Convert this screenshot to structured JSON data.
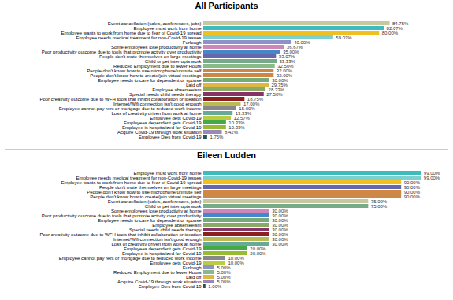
{
  "chart_data": [
    {
      "type": "bar",
      "orientation": "horizontal",
      "title": "All Participants",
      "categories": [
        "Event cancellation (sales, conferences, jobs)",
        "Employee must work from home",
        "Employee wants to work from home due to fear of Covid-19 spread",
        "Employee needs medical treatment for non-Covid-19 issues",
        "Furlough",
        "Some employees lose productivity at home",
        "Poor productivity outcome due to tools that promote activity over productivity",
        "People don't mute themselves on large meetings",
        "Child or pet interrupts work",
        "Reduced Employment due to fewer Hours",
        "People don't know how to use microphone/unmute self",
        "People don't know how to create/join virtual meetings",
        "Employee needs to care for dependent or spouse",
        "Laid off",
        "Employee absenteeism",
        "Special needs child needs therapy",
        "Poor creativity outcome due to WFH tools that inhibit collaboration or ideation",
        "Internet/Wifi connection isn't good enough",
        "Employee cannot pay rent or mortgage due to reduced work income",
        "Loss of creativity driven from work at home",
        "Employee gets Covid-19",
        "Employees dependent gets Covid-19",
        "Employee is hospitalized for Covid-19",
        "Acquire Covid-19 through work situation",
        "Employee Dies from Covid-19"
      ],
      "values": [
        84.75,
        82.07,
        80.0,
        59.07,
        40.0,
        36.67,
        35.0,
        33.07,
        33.33,
        32.5,
        32.0,
        32.0,
        30.0,
        29.75,
        28.33,
        27.5,
        18.75,
        17.0,
        15.0,
        13.33,
        12.57,
        10.33,
        10.33,
        8.42,
        1.75
      ],
      "value_labels": [
        "84.75%",
        "82.07%",
        "80.00%",
        "59.07%",
        "40.00%",
        "36.67%",
        "35.00%",
        "33.07%",
        "33.33%",
        "32.50%",
        "32.00%",
        "32.00%",
        "30.00%",
        "29.75%",
        "28.33%",
        "27.50%",
        "18.75%",
        "17.00%",
        "15.00%",
        "13.33%",
        "12.57%",
        "10.33%",
        "10.33%",
        "8.42%",
        "1.75%"
      ],
      "colors": [
        "#c8c8a0",
        "#3cbcbc",
        "#f0c020",
        "#7dd0d0",
        "#9090cc",
        "#cc88bb",
        "#4488cc",
        "#6666aa",
        "#77aa88",
        "#88bb88",
        "#cc8844",
        "#cc8844",
        "#77aa77",
        "#ddb844",
        "#88aa66",
        "#883366",
        "#882222",
        "#bbbb55",
        "#888888",
        "#66aa99",
        "#bbcc44",
        "#44aa44",
        "#99bb33",
        "#9988bb",
        "#225555"
      ],
      "xlim": [
        0,
        110
      ],
      "data_labels": true,
      "tick_labels": "y",
      "grid": false
    },
    {
      "type": "bar",
      "orientation": "horizontal",
      "title": "Eileen Ludden",
      "categories": [
        "Employee must work from home",
        "Employee needs medical treatment for non-Covid-19 issues",
        "Employee wants to work from home due to fear of Covid-19 spread",
        "People don't mute themselves on large meetings",
        "People don't know how to use microphone/unmute self",
        "People don't know how to create/join virtual meetings",
        "Event cancellation (sales, conferences, jobs)",
        "Child or pet interrupts work",
        "Some employees lose productivity at home",
        "Poor productivity outcome due to tools that promote activity over productivity",
        "Employee needs to care for dependent or spouse",
        "Employee absenteeism",
        "Special needs child needs therapy",
        "Poor creativity outcome due to WFH tools that inhibit collaboration or ideation",
        "Internet/Wifi connection isn't good enough",
        "Loss of creativity driven from work at home",
        "Employees dependent gets Covid-19",
        "Employee is hospitalized for Covid-19",
        "Employee cannot pay rent or mortgage due to reduced work income",
        "Employee gets Covid-19",
        "Furlough",
        "Reduced Employment due to fewer Hours",
        "Laid off",
        "Acquire Covid-19 through work situation",
        "Employee Dies from Covid-19"
      ],
      "values": [
        99.0,
        99.0,
        90.0,
        90.0,
        90.0,
        90.0,
        75.0,
        75.0,
        30.0,
        30.0,
        30.0,
        30.0,
        30.0,
        30.0,
        30.0,
        30.0,
        20.0,
        20.0,
        10.0,
        10.0,
        5.0,
        5.0,
        5.0,
        5.0,
        1.0
      ],
      "value_labels": [
        "99.00%",
        "99.00%",
        "90.00%",
        "90.00%",
        "90.00%",
        "90.00%",
        "75.00%",
        "75.00%",
        "30.00%",
        "30.00%",
        "30.00%",
        "30.00%",
        "30.00%",
        "30.00%",
        "30.00%",
        "30.00%",
        "20.00%",
        "20.00%",
        "10.00%",
        "10.00%",
        "5.00%",
        "5.00%",
        "5.00%",
        "5.00%",
        "1.00%"
      ],
      "colors": [
        "#3cbcbc",
        "#7dd0d0",
        "#f0c020",
        "#6666aa",
        "#cc8844",
        "#cc8844",
        "#c8c8a0",
        "#77aa88",
        "#cc88bb",
        "#4488cc",
        "#77aa77",
        "#88aa66",
        "#883366",
        "#882222",
        "#bbbb55",
        "#66aa99",
        "#44aa44",
        "#99bb33",
        "#888888",
        "#bbcc44",
        "#9090cc",
        "#88bb88",
        "#ddb844",
        "#9988bb",
        "#225555"
      ],
      "xlim": [
        0,
        110
      ],
      "data_labels": true,
      "tick_labels": "y",
      "grid": false
    }
  ]
}
